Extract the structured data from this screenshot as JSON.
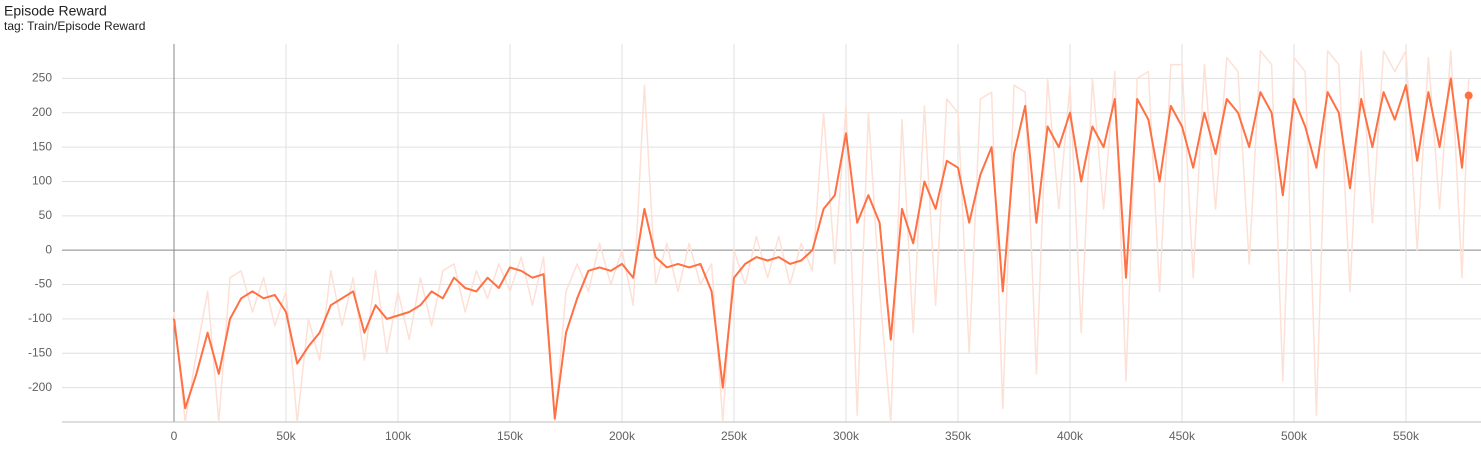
{
  "chart_data": {
    "type": "line",
    "title": "Episode Reward",
    "subtitle": "tag: Train/Episode Reward",
    "x": [
      0,
      5000,
      10000,
      15000,
      20000,
      25000,
      30000,
      35000,
      40000,
      45000,
      50000,
      55000,
      60000,
      65000,
      70000,
      75000,
      80000,
      85000,
      90000,
      95000,
      100000,
      105000,
      110000,
      115000,
      120000,
      125000,
      130000,
      135000,
      140000,
      145000,
      150000,
      155000,
      160000,
      165000,
      170000,
      175000,
      180000,
      185000,
      190000,
      195000,
      200000,
      205000,
      210000,
      215000,
      220000,
      225000,
      230000,
      235000,
      240000,
      245000,
      250000,
      255000,
      260000,
      265000,
      270000,
      275000,
      280000,
      285000,
      290000,
      295000,
      300000,
      305000,
      310000,
      315000,
      320000,
      325000,
      330000,
      335000,
      340000,
      345000,
      350000,
      355000,
      360000,
      365000,
      370000,
      375000,
      380000,
      385000,
      390000,
      395000,
      400000,
      405000,
      410000,
      415000,
      420000,
      425000,
      430000,
      435000,
      440000,
      445000,
      450000,
      455000,
      460000,
      465000,
      470000,
      475000,
      480000,
      485000,
      490000,
      495000,
      500000,
      505000,
      510000,
      515000,
      520000,
      525000,
      530000,
      535000,
      540000,
      545000,
      550000,
      555000,
      560000,
      565000,
      570000,
      575000,
      578000
    ],
    "series": [
      {
        "color": "#fde0d6",
        "values": [
          -90,
          -250,
          -150,
          -60,
          -250,
          -40,
          -30,
          -90,
          -40,
          -110,
          -60,
          -250,
          -100,
          -160,
          -30,
          -110,
          -40,
          -160,
          -30,
          -150,
          -60,
          -130,
          -40,
          -110,
          -30,
          -20,
          -90,
          -30,
          -70,
          -20,
          -60,
          -10,
          -80,
          -10,
          -250,
          -60,
          -20,
          -60,
          10,
          -50,
          0,
          -80,
          240,
          -50,
          10,
          -60,
          10,
          -50,
          -20,
          -250,
          0,
          -50,
          20,
          -40,
          20,
          -50,
          10,
          -30,
          200,
          -20,
          210,
          -240,
          200,
          -60,
          -250,
          190,
          -120,
          210,
          -80,
          220,
          200,
          -150,
          220,
          230,
          -230,
          240,
          230,
          -180,
          250,
          60,
          240,
          -120,
          250,
          60,
          260,
          -190,
          250,
          260,
          -60,
          270,
          270,
          -40,
          270,
          60,
          280,
          260,
          -20,
          290,
          270,
          -190,
          280,
          260,
          -240,
          290,
          270,
          -60,
          290,
          40,
          290,
          260,
          290,
          0,
          280,
          60,
          290,
          -40,
          250
        ]
      },
      {
        "color": "#ff7043",
        "values": [
          -100,
          -230,
          -180,
          -120,
          -180,
          -100,
          -70,
          -60,
          -70,
          -65,
          -90,
          -165,
          -140,
          -120,
          -80,
          -70,
          -60,
          -120,
          -80,
          -100,
          -95,
          -90,
          -80,
          -60,
          -70,
          -40,
          -55,
          -60,
          -40,
          -55,
          -25,
          -30,
          -40,
          -35,
          -245,
          -120,
          -70,
          -30,
          -25,
          -30,
          -20,
          -40,
          60,
          -10,
          -25,
          -20,
          -25,
          -20,
          -60,
          -200,
          -40,
          -20,
          -10,
          -15,
          -10,
          -20,
          -15,
          0,
          60,
          80,
          170,
          40,
          80,
          40,
          -130,
          60,
          10,
          100,
          60,
          130,
          120,
          40,
          110,
          150,
          -60,
          140,
          210,
          40,
          180,
          150,
          200,
          100,
          180,
          150,
          220,
          -40,
          220,
          190,
          100,
          210,
          180,
          120,
          200,
          140,
          220,
          200,
          150,
          230,
          200,
          80,
          220,
          180,
          120,
          230,
          200,
          90,
          220,
          150,
          230,
          190,
          240,
          130,
          230,
          150,
          250,
          120,
          225
        ]
      }
    ],
    "xlim": [
      -50000,
      583500
    ],
    "xticks": [
      0,
      {
        "value": 50000,
        "label": "50k"
      },
      {
        "value": 100000,
        "label": "100k"
      },
      {
        "value": 150000,
        "label": "150k"
      },
      {
        "value": 200000,
        "label": "200k"
      },
      {
        "value": 250000,
        "label": "250k"
      },
      {
        "value": 300000,
        "label": "300k"
      },
      {
        "value": 350000,
        "label": "350k"
      },
      {
        "value": 400000,
        "label": "400k"
      },
      {
        "value": 450000,
        "label": "450k"
      },
      {
        "value": 500000,
        "label": "500k"
      },
      {
        "value": 550000,
        "label": "550k"
      }
    ],
    "ylim": [
      -250,
      300
    ],
    "yticks": [
      -200,
      -150,
      -100,
      -50,
      0,
      50,
      100,
      150,
      200,
      250
    ],
    "grid": true
  }
}
